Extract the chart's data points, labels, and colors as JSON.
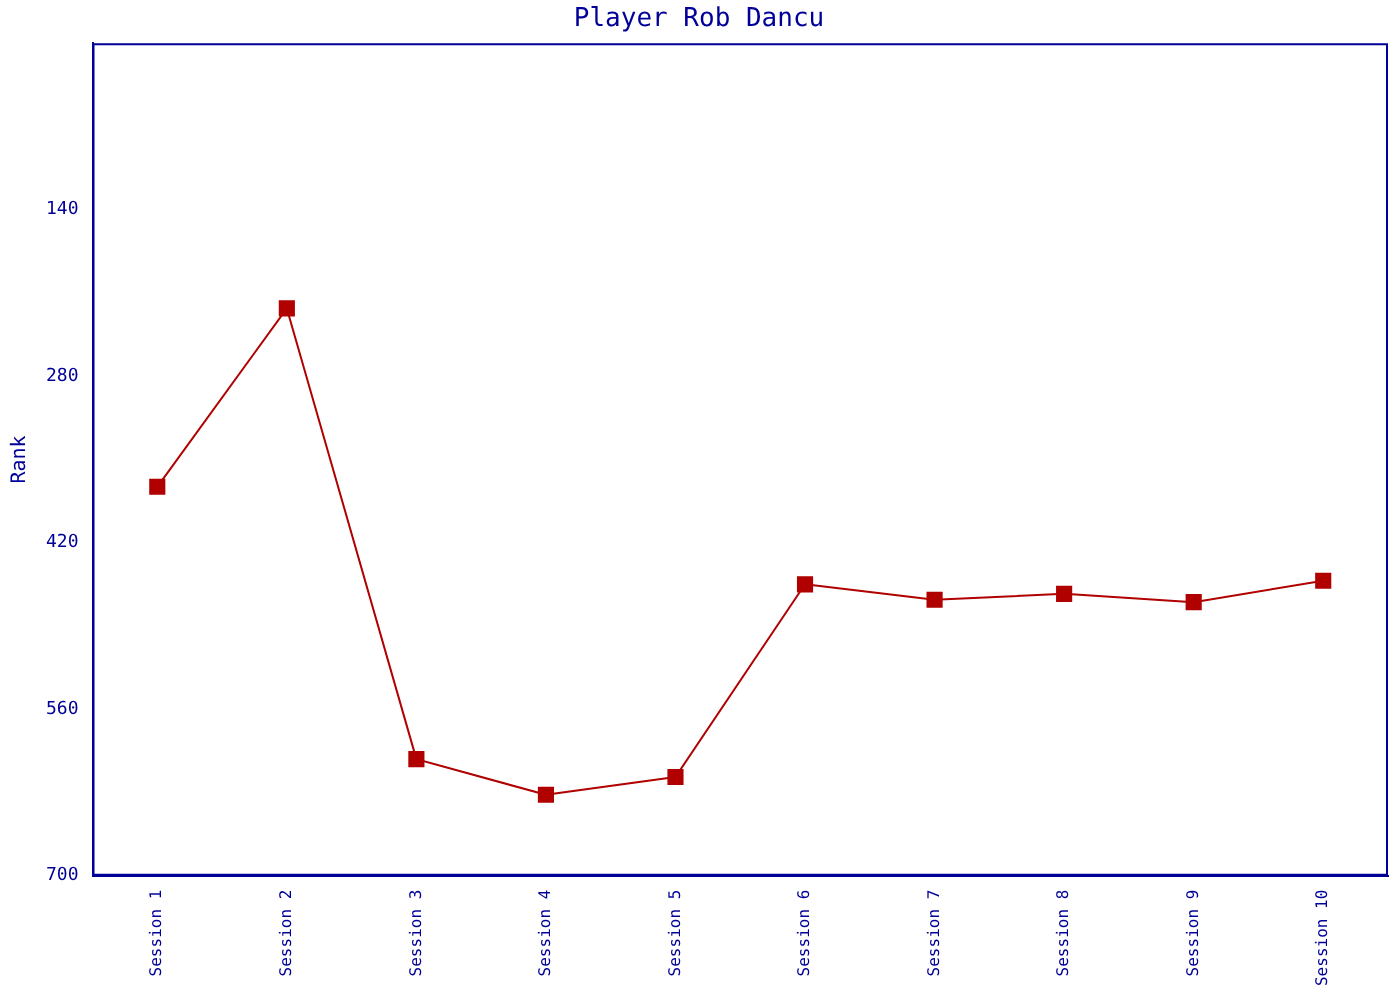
{
  "chart_data": {
    "type": "line",
    "title": "Player Rob Dancu",
    "ylabel": "Rank",
    "categories": [
      "Session 1",
      "Session 2",
      "Session 3",
      "Session 4",
      "Session 5",
      "Session 6",
      "Session 7",
      "Session 8",
      "Session 9",
      "Session 10"
    ],
    "series": [
      {
        "color": "#b00000",
        "values": [
          373,
          223,
          602,
          632,
          617,
          455,
          468,
          463,
          470,
          452
        ]
      }
    ],
    "ylim": [
      700,
      0
    ],
    "yticks": [
      140,
      280,
      420,
      560,
      700
    ],
    "grid": false,
    "legend": false,
    "marker": "square",
    "line_style": "solid"
  }
}
